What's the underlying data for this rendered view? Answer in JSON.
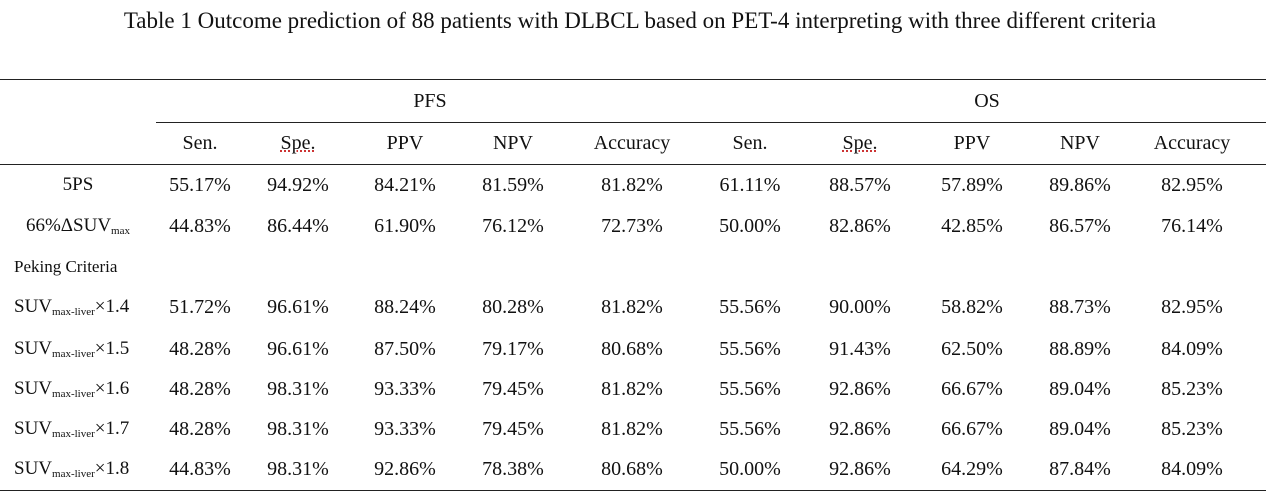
{
  "title": "Table 1 Outcome prediction of 88 patients with DLBCL based on PET-4 interpreting with three different criteria",
  "groups": {
    "pfs": "PFS",
    "os": "OS"
  },
  "columns": [
    "Sen.",
    "Spe.",
    "PPV",
    "NPV",
    "Accuracy",
    "Sen.",
    "Spe.",
    "PPV",
    "NPV",
    "Accuracy"
  ],
  "rows": [
    {
      "label": "5PS",
      "values": [
        "55.17%",
        "94.92%",
        "84.21%",
        "81.59%",
        "81.82%",
        "61.11%",
        "88.57%",
        "57.89%",
        "89.86%",
        "82.95%"
      ]
    },
    {
      "label_main": "66%ΔSUV",
      "label_sub": "max",
      "values": [
        "44.83%",
        "86.44%",
        "61.90%",
        "76.12%",
        "72.73%",
        "50.00%",
        "82.86%",
        "42.85%",
        "86.57%",
        "76.14%"
      ]
    },
    {
      "section": "Peking Criteria"
    },
    {
      "label_main": "SUV",
      "label_sub": "max-liver",
      "label_tail": "×1.4",
      "values": [
        "51.72%",
        "96.61%",
        "88.24%",
        "80.28%",
        "81.82%",
        "55.56%",
        "90.00%",
        "58.82%",
        "88.73%",
        "82.95%"
      ]
    },
    {
      "label_main": "SUV",
      "label_sub": "max-liver",
      "label_tail": "×1.5",
      "values": [
        "48.28%",
        "96.61%",
        "87.50%",
        "79.17%",
        "80.68%",
        "55.56%",
        "91.43%",
        "62.50%",
        "88.89%",
        "84.09%"
      ]
    },
    {
      "label_main": "SUV",
      "label_sub": "max-liver",
      "label_tail": "×1.6",
      "values": [
        "48.28%",
        "98.31%",
        "93.33%",
        "79.45%",
        "81.82%",
        "55.56%",
        "92.86%",
        "66.67%",
        "89.04%",
        "85.23%"
      ]
    },
    {
      "label_main": "SUV",
      "label_sub": "max-liver",
      "label_tail": "×1.7",
      "values": [
        "48.28%",
        "98.31%",
        "93.33%",
        "79.45%",
        "81.82%",
        "55.56%",
        "92.86%",
        "66.67%",
        "89.04%",
        "85.23%"
      ]
    },
    {
      "label_main": "SUV",
      "label_sub": "max-liver",
      "label_tail": "×1.8",
      "values": [
        "44.83%",
        "98.31%",
        "92.86%",
        "78.38%",
        "80.68%",
        "50.00%",
        "92.86%",
        "64.29%",
        "87.84%",
        "84.09%"
      ]
    }
  ]
}
